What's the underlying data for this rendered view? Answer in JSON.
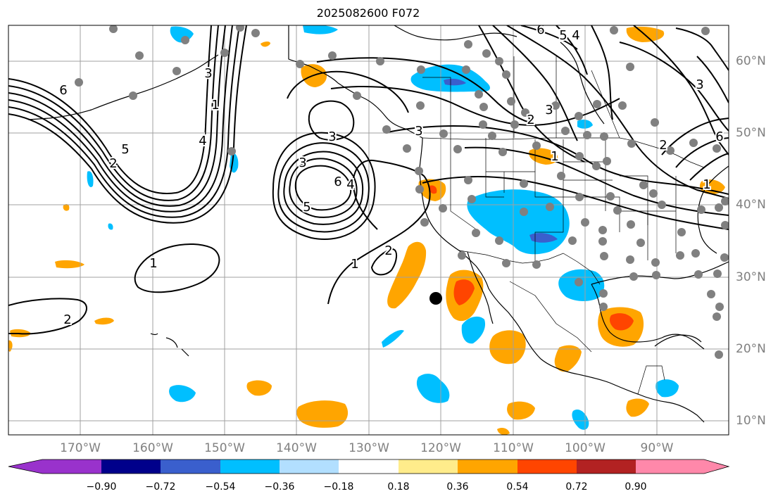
{
  "title": "2025082600 F072",
  "longitude_labels": [
    "170°W",
    "160°W",
    "150°W",
    "140°W",
    "130°W",
    "120°W",
    "110°W",
    "100°W",
    "90°W"
  ],
  "latitude_labels": [
    "60°N",
    "50°N",
    "40°N",
    "30°N",
    "20°N",
    "10°N"
  ],
  "colorbar": {
    "tick_labels": [
      "−0.90",
      "−0.72",
      "−0.54",
      "−0.36",
      "−0.18",
      "0.18",
      "0.36",
      "0.54",
      "0.72",
      "0.90"
    ],
    "colors": [
      "#9932cc",
      "#00008b",
      "#3a5fcd",
      "#00bfff",
      "#b2dfff",
      "#ffffff",
      "#ffec8b",
      "#ffa500",
      "#ff4500",
      "#b22222",
      "#ff88aa"
    ]
  },
  "contour_labels": [
    "6",
    "5",
    "2",
    "1",
    "4",
    "3",
    "3",
    "6",
    "4",
    "5",
    "3",
    "2",
    "1",
    "1",
    "2",
    "3",
    "6",
    "5",
    "4",
    "3",
    "2",
    "1",
    "3",
    "6",
    "2",
    "1"
  ],
  "colors": {
    "contour": "#000000",
    "coast": "#000000",
    "grid": "#a0a0a0",
    "station": "#808080",
    "positive_fill": "#ffa500",
    "strong_positive_fill": "#ff4500",
    "negative_fill": "#00bfff",
    "strong_negative_fill": "#3a5fcd",
    "marker": "#000000"
  }
}
